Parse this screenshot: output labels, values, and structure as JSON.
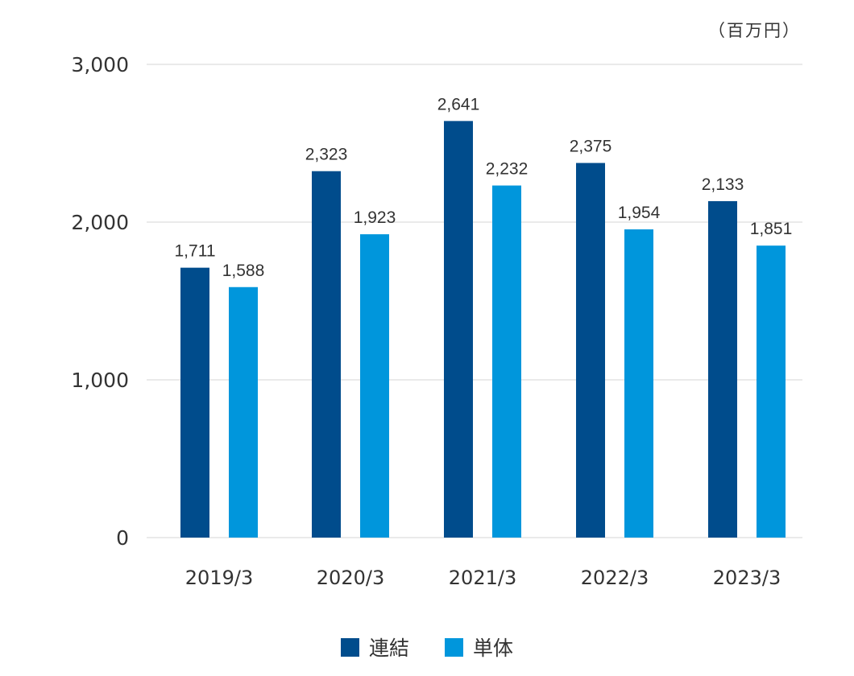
{
  "unit_label": "（百万円）",
  "colors": {
    "consolidated": "#004C8C",
    "standalone": "#0096DC",
    "grid": "#E3E3E3"
  },
  "chart_data": {
    "type": "bar",
    "categories": [
      "2019/3",
      "2020/3",
      "2021/3",
      "2022/3",
      "2023/3"
    ],
    "series": [
      {
        "name": "連結",
        "values": [
          1711,
          2323,
          2641,
          2375,
          2133
        ],
        "labels": [
          "1,711",
          "2,323",
          "2,641",
          "2,375",
          "2,133"
        ]
      },
      {
        "name": "単体",
        "values": [
          1588,
          1923,
          2232,
          1954,
          1851
        ],
        "labels": [
          "1,588",
          "1,923",
          "2,232",
          "1,954",
          "1,851"
        ]
      }
    ],
    "yticks": [
      "0",
      "1,000",
      "2,000",
      "3,000"
    ],
    "ylim": [
      0,
      3000
    ],
    "grid": true,
    "legend": "bottom-center"
  }
}
